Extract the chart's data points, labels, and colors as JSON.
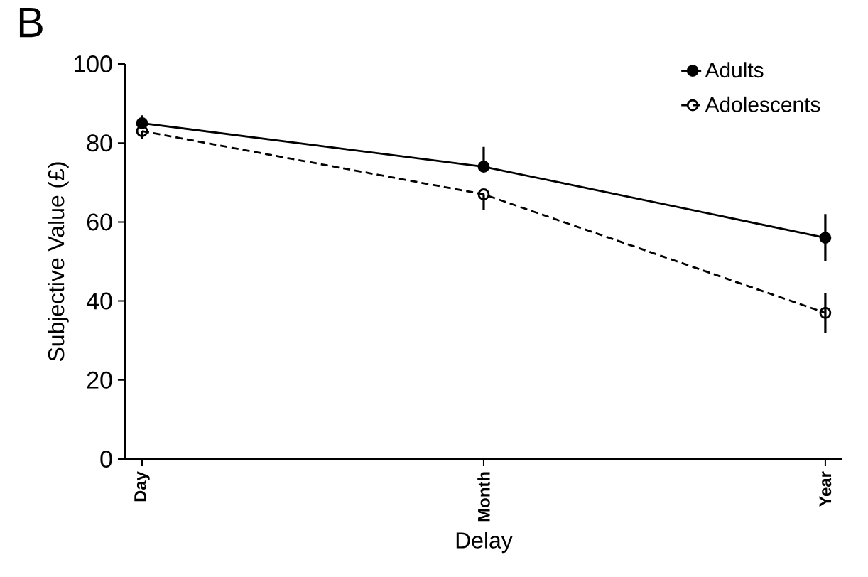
{
  "chart_data": {
    "type": "line",
    "title": "B",
    "xlabel": "Delay",
    "ylabel": "Subjective Value (£)",
    "categories": [
      "Day",
      "Month",
      "Year"
    ],
    "ylim": [
      0,
      100
    ],
    "yticks": [
      0,
      20,
      40,
      60,
      80,
      100
    ],
    "series": [
      {
        "name": "Adults",
        "color": "#000000",
        "line_style": "solid",
        "values": [
          85,
          74,
          56
        ],
        "errors": [
          [
            85,
            87
          ],
          [
            74,
            79
          ],
          6
        ]
      },
      {
        "name": "Adolescents",
        "color": "#000000",
        "line_style": "dashed",
        "values": [
          83,
          67,
          37
        ],
        "errors": [
          [
            81,
            83
          ],
          [
            63,
            67
          ],
          5
        ]
      }
    ],
    "marker": "circle",
    "legend": "top right",
    "grid": false
  }
}
